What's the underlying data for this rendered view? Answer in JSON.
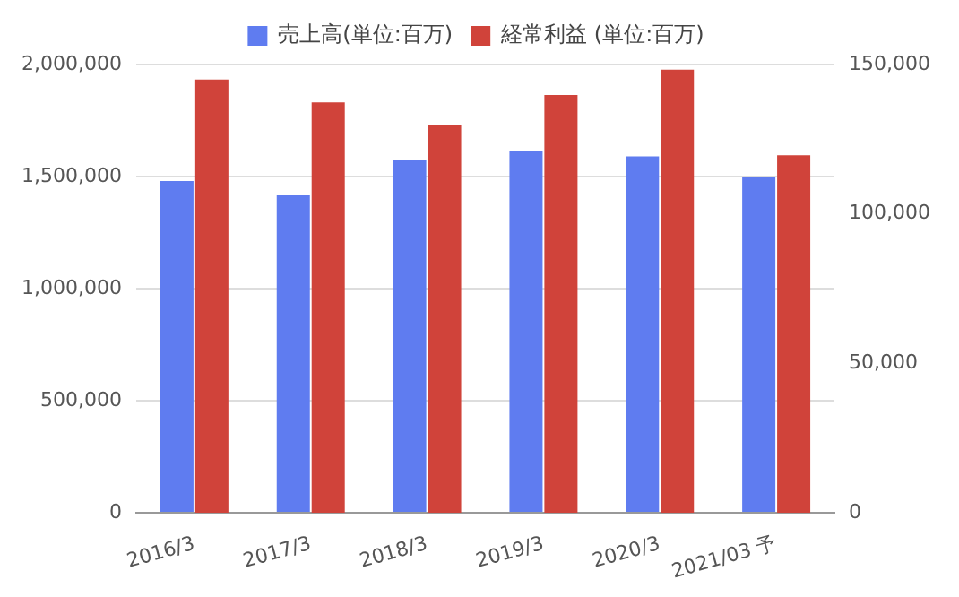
{
  "chart_data": {
    "type": "bar",
    "categories": [
      "2016/3",
      "2017/3",
      "2018/3",
      "2019/3",
      "2020/3",
      "2021/03 予"
    ],
    "series": [
      {
        "name": "売上高(単位:百万)",
        "color": "#5f7cf0",
        "values": [
          1480000,
          1420000,
          1575000,
          1615000,
          1590000,
          1500000
        ]
      },
      {
        "name": "経常利益 (単位:百万)",
        "color": "#d0433a",
        "axis": "y2",
        "values": [
          145000,
          137300,
          129600,
          139800,
          148300,
          119600
        ]
      }
    ],
    "ylim": [
      0,
      2000000
    ],
    "yticks": [
      {
        "value": 0,
        "label": "0"
      },
      {
        "value": 500000,
        "label": "500,000"
      },
      {
        "value": 1000000,
        "label": "1,000,000"
      },
      {
        "value": 1500000,
        "label": "1,500,000"
      },
      {
        "value": 2000000,
        "label": "2,000,000"
      }
    ],
    "y2lim": [
      0,
      150000
    ],
    "y2ticks": [
      {
        "value": 0,
        "label": "0"
      },
      {
        "value": 50000,
        "label": "50,000"
      },
      {
        "value": 100000,
        "label": "100,000"
      },
      {
        "value": 150000,
        "label": "150,000"
      }
    ],
    "grid": "y",
    "legend": "top"
  }
}
